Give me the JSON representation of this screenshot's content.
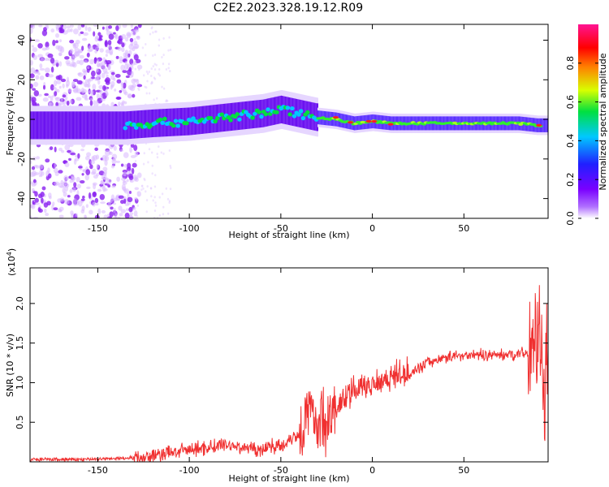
{
  "title": "C2E2.2023.328.19.12.R09",
  "chart_data": [
    {
      "type": "heatmap",
      "xlabel": "Height of straight line (km)",
      "ylabel": "Frequency (Hz)",
      "xlim": [
        -187,
        96
      ],
      "ylim": [
        -50,
        48
      ],
      "xticks": [
        -150,
        -100,
        -50,
        0,
        50
      ],
      "yticks": [
        -40,
        -20,
        0,
        20,
        40
      ],
      "colorbar": {
        "label": "Normalized spectral amplitude",
        "ticks": [
          0.0,
          0.2,
          0.4,
          0.6,
          0.8
        ],
        "range": [
          0,
          1
        ],
        "colors": [
          "#ffffff",
          "#7a00ff",
          "#2020ff",
          "#00c8ff",
          "#00e040",
          "#d8ff00",
          "#ff8000",
          "#ff0000",
          "#ff1493"
        ]
      },
      "ridge": {
        "x": [
          -135,
          -120,
          -100,
          -80,
          -60,
          -50,
          -40,
          -30,
          -20,
          -10,
          0,
          10,
          20,
          40,
          60,
          80,
          90
        ],
        "y": [
          -3,
          -2,
          -1,
          1,
          3,
          5,
          3,
          1,
          0,
          -2,
          -1,
          -2,
          -2,
          -2,
          -2,
          -2,
          -3
        ]
      },
      "grid": false
    },
    {
      "type": "line",
      "xlabel": "Height of straight line (km)",
      "ylabel": "SNR (10 * v/v)",
      "multiplier": "(x10",
      "multiplier_exp": "4",
      "multiplier_close": ")",
      "xlim": [
        -187,
        96
      ],
      "ylim": [
        0,
        2.45
      ],
      "xticks": [
        -150,
        -100,
        -50,
        0,
        50
      ],
      "yticks": [
        0.5,
        1.0,
        1.5,
        2.0
      ],
      "ytick_labels": [
        "0.5",
        "1.0",
        "1.5",
        "2.0"
      ],
      "series_color": "#f03030",
      "series": [
        {
          "x": [
            -187,
            -160,
            -140,
            -120,
            -110,
            -100,
            -90,
            -80,
            -70,
            -60,
            -55,
            -50,
            -45,
            -40,
            -35,
            -30,
            -25,
            -20,
            -15,
            -10,
            -5,
            0,
            10,
            20,
            25,
            30,
            40,
            50,
            60,
            70,
            80,
            85,
            88,
            90,
            92,
            94,
            96
          ],
          "y": [
            0.03,
            0.03,
            0.04,
            0.07,
            0.12,
            0.15,
            0.18,
            0.22,
            0.18,
            0.15,
            0.22,
            0.18,
            0.3,
            0.35,
            0.65,
            0.5,
            0.55,
            0.65,
            0.8,
            0.9,
            0.95,
            1.0,
            1.08,
            1.12,
            1.18,
            1.25,
            1.32,
            1.35,
            1.35,
            1.35,
            1.37,
            1.38,
            1.45,
            1.6,
            1.3,
            1.2,
            1.25
          ]
        }
      ]
    }
  ]
}
